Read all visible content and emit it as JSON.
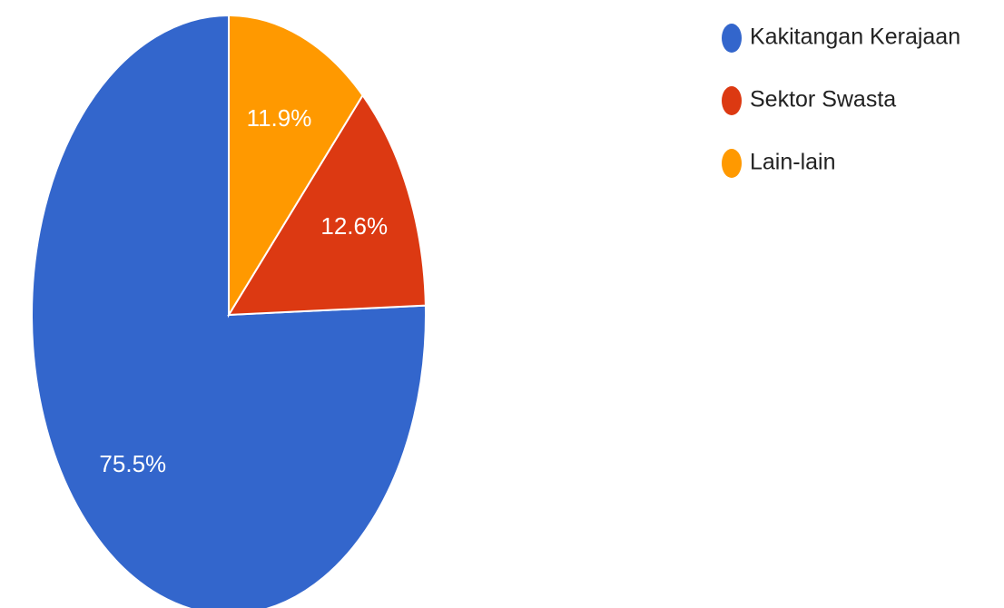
{
  "chart_data": {
    "type": "pie",
    "categories": [
      "Kakitangan Kerajaan",
      "Sektor Swasta",
      "Lain-lain"
    ],
    "values": [
      75.5,
      12.6,
      11.9
    ],
    "value_labels": [
      "75.5%",
      "12.6%",
      "11.9%"
    ],
    "colors": [
      "#3366cc",
      "#dc3912",
      "#ff9900"
    ],
    "legend": "right"
  }
}
